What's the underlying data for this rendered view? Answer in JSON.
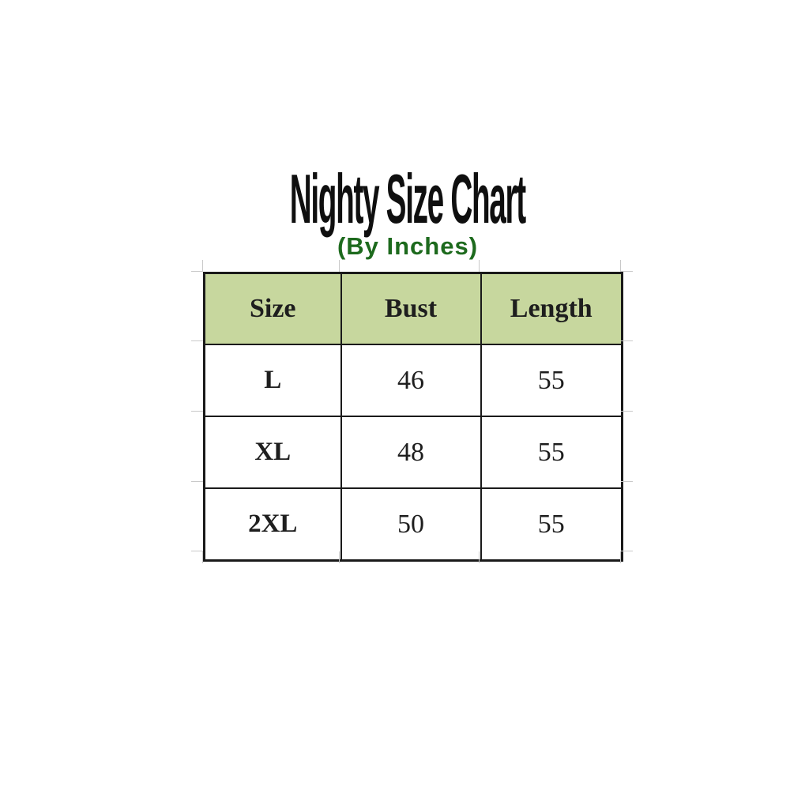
{
  "title": "Nighty Size Chart",
  "subtitle": "(By Inches)",
  "table": {
    "headers": [
      "Size",
      "Bust",
      "Length"
    ],
    "rows": [
      [
        "L",
        "46",
        "55"
      ],
      [
        "XL",
        "48",
        "55"
      ],
      [
        "2XL",
        "50",
        "55"
      ]
    ]
  },
  "colors": {
    "header_bg": "#c7d79e",
    "border": "#1a1a1a",
    "title": "#0f0f0f",
    "subtitle": "#1d6a1d",
    "cell_text": "#1e1e1e",
    "gridline_stub": "#c9c9c9"
  },
  "chart_data": {
    "type": "table",
    "title": "Nighty Size Chart",
    "subtitle": "(By Inches)",
    "units": "inches",
    "columns": [
      "Size",
      "Bust",
      "Length"
    ],
    "rows": [
      {
        "Size": "L",
        "Bust": 46,
        "Length": 55
      },
      {
        "Size": "XL",
        "Bust": 48,
        "Length": 55
      },
      {
        "Size": "2XL",
        "Bust": 50,
        "Length": 55
      }
    ]
  }
}
